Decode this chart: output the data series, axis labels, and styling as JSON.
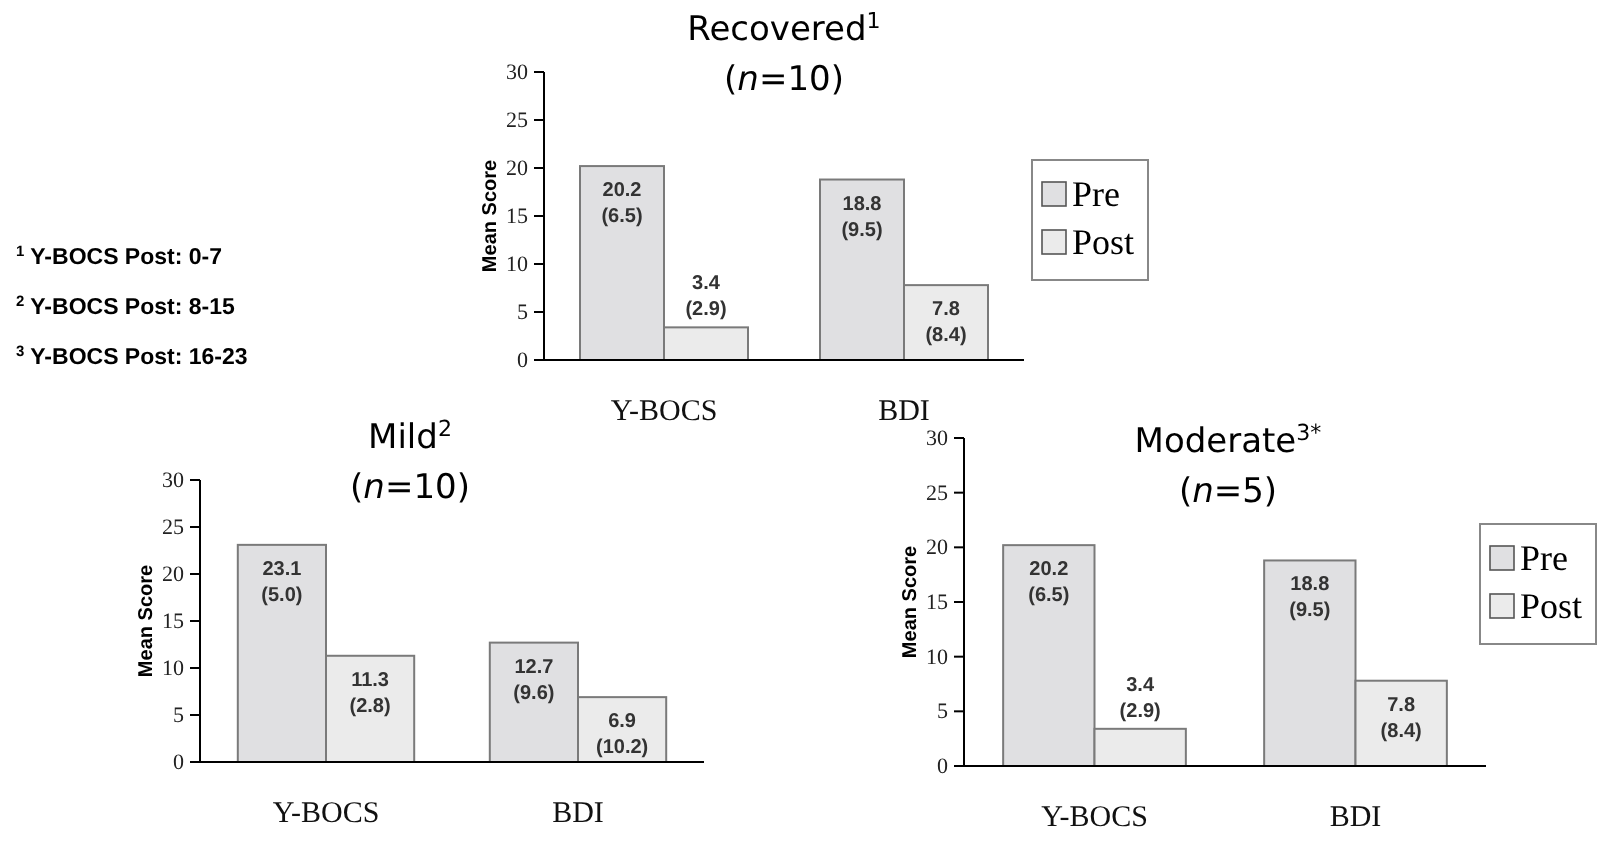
{
  "chart_data": [
    {
      "type": "bar",
      "title": "Recovered$^{1}$",
      "subtitle": "(n=10)",
      "ylabel": "Mean Score",
      "categories": [
        "Y-BOCS",
        "BDI"
      ],
      "ylim": [
        0,
        30
      ],
      "yticks": [
        0,
        5,
        10,
        15,
        20,
        25,
        30
      ],
      "grid": false,
      "legend": "right",
      "series": [
        {
          "name": "Pre",
          "color": "#e0e0e2",
          "values": [
            20.2,
            18.8
          ],
          "value_labels": [
            "20.2 (6.5)",
            "18.8 (9.5)"
          ]
        },
        {
          "name": "Post",
          "color": "#ebebeb",
          "values": [
            3.4,
            7.8
          ],
          "value_labels": [
            "3.4 (2.9)",
            "7.8 (8.4)"
          ]
        }
      ]
    },
    {
      "type": "other",
      "annotations": [
        "$^{1}$ Y-BOCS Post:  0-7",
        "$^{2}$ Y-BOCS Post:  8-15",
        "$^{3}$ Y-BOCS Post: 16-23"
      ]
    },
    {
      "type": "bar",
      "title": "Mild$^{2}$",
      "subtitle": "(n=10)",
      "ylabel": "Mean Score",
      "categories": [
        "Y-BOCS",
        "BDI"
      ],
      "ylim": [
        0,
        30
      ],
      "yticks": [
        0,
        5,
        10,
        15,
        20,
        25,
        30
      ],
      "grid": false,
      "series": [
        {
          "color": "#e0e0e2",
          "values": [
            23.1,
            12.7
          ],
          "value_labels": [
            "23.1 (5.0)",
            "12.7 (9.6)"
          ]
        },
        {
          "color": "#ebebeb",
          "values": [
            11.3,
            6.9
          ],
          "value_labels": [
            "11.3 (2.8)",
            "6.9 (10.2)"
          ]
        }
      ]
    },
    {
      "type": "bar",
      "title": "Moderate$^{3*}$",
      "subtitle": "(n=5)",
      "ylabel": "Mean Score",
      "categories": [
        "Y-BOCS",
        "BDI"
      ],
      "ylim": [
        0,
        30
      ],
      "yticks": [
        0,
        5,
        10,
        15,
        20,
        25,
        30
      ],
      "grid": false,
      "legend": "right",
      "series": [
        {
          "name": "Pre",
          "color": "#e0e0e2",
          "values": [
            20.2,
            18.8
          ],
          "value_labels": [
            "20.2 (6.5)",
            "18.8 (9.5)"
          ]
        },
        {
          "name": "Post",
          "color": "#ebebeb",
          "values": [
            3.4,
            7.8
          ],
          "value_labels": [
            "3.4 (2.9)",
            "7.8 (8.4)"
          ]
        }
      ]
    }
  ]
}
